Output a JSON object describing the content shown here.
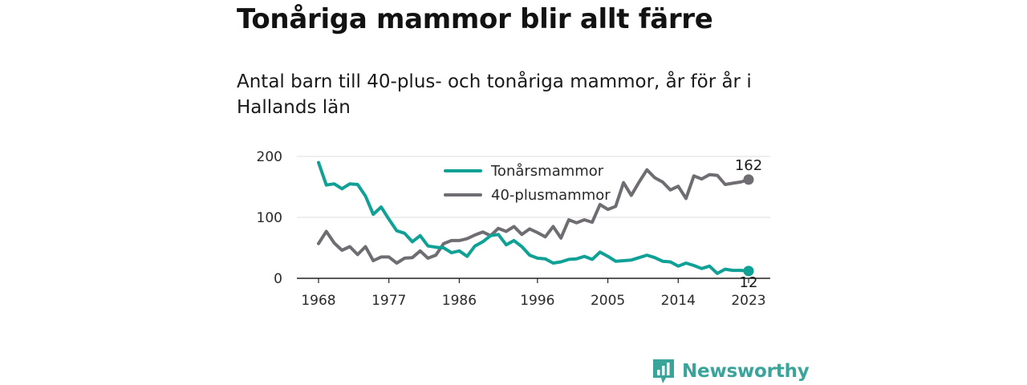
{
  "title": "Tonåriga mammor blir allt färre",
  "subtitle": "Antal barn till 40-plus- och tonåriga mammor, år för år i Hallands län",
  "brand": {
    "name": "Newsworthy",
    "color": "#3aa39a",
    "icon": "bar-chart-logo-icon"
  },
  "chart_data": {
    "type": "line",
    "x": [
      1968,
      1969,
      1970,
      1971,
      1972,
      1973,
      1974,
      1975,
      1976,
      1977,
      1978,
      1979,
      1980,
      1981,
      1982,
      1983,
      1984,
      1985,
      1986,
      1987,
      1988,
      1989,
      1990,
      1991,
      1992,
      1993,
      1994,
      1995,
      1996,
      1997,
      1998,
      1999,
      2000,
      2001,
      2002,
      2003,
      2004,
      2005,
      2006,
      2007,
      2008,
      2009,
      2010,
      2011,
      2012,
      2013,
      2014,
      2015,
      2016,
      2017,
      2018,
      2019,
      2020,
      2021,
      2022,
      2023
    ],
    "series": [
      {
        "name": "Tonårsmammor",
        "color": "#10a196",
        "values": [
          190,
          153,
          155,
          147,
          155,
          154,
          135,
          105,
          117,
          97,
          78,
          74,
          60,
          70,
          53,
          51,
          50,
          42,
          45,
          36,
          53,
          60,
          70,
          72,
          55,
          62,
          52,
          38,
          33,
          32,
          25,
          27,
          31,
          32,
          36,
          31,
          43,
          36,
          28,
          29,
          30,
          34,
          38,
          34,
          28,
          27,
          20,
          25,
          21,
          16,
          20,
          8,
          15,
          13,
          13,
          12
        ]
      },
      {
        "name": "40-plusmammor",
        "color": "#6f6d72",
        "values": [
          57,
          77,
          58,
          46,
          52,
          39,
          52,
          29,
          35,
          35,
          25,
          33,
          34,
          45,
          33,
          38,
          57,
          62,
          62,
          65,
          71,
          76,
          70,
          82,
          77,
          85,
          72,
          81,
          75,
          68,
          85,
          66,
          96,
          91,
          96,
          92,
          121,
          113,
          118,
          157,
          136,
          158,
          178,
          165,
          158,
          145,
          151,
          131,
          168,
          163,
          170,
          169,
          154,
          156,
          158,
          162
        ]
      }
    ],
    "xticks": [
      "1968",
      "1977",
      "1986",
      "1996",
      "2005",
      "2014",
      "2023"
    ],
    "xtick_values": [
      1968,
      1977,
      1986,
      1996,
      2005,
      2014,
      2023
    ],
    "yticks": [
      "0",
      "100",
      "200"
    ],
    "ytick_values": [
      0,
      100,
      200
    ],
    "ylim": [
      0,
      200
    ],
    "xlim": [
      1968,
      2023
    ],
    "legend_position": "top-center",
    "grid": true,
    "end_labels": [
      "162",
      "12"
    ]
  }
}
